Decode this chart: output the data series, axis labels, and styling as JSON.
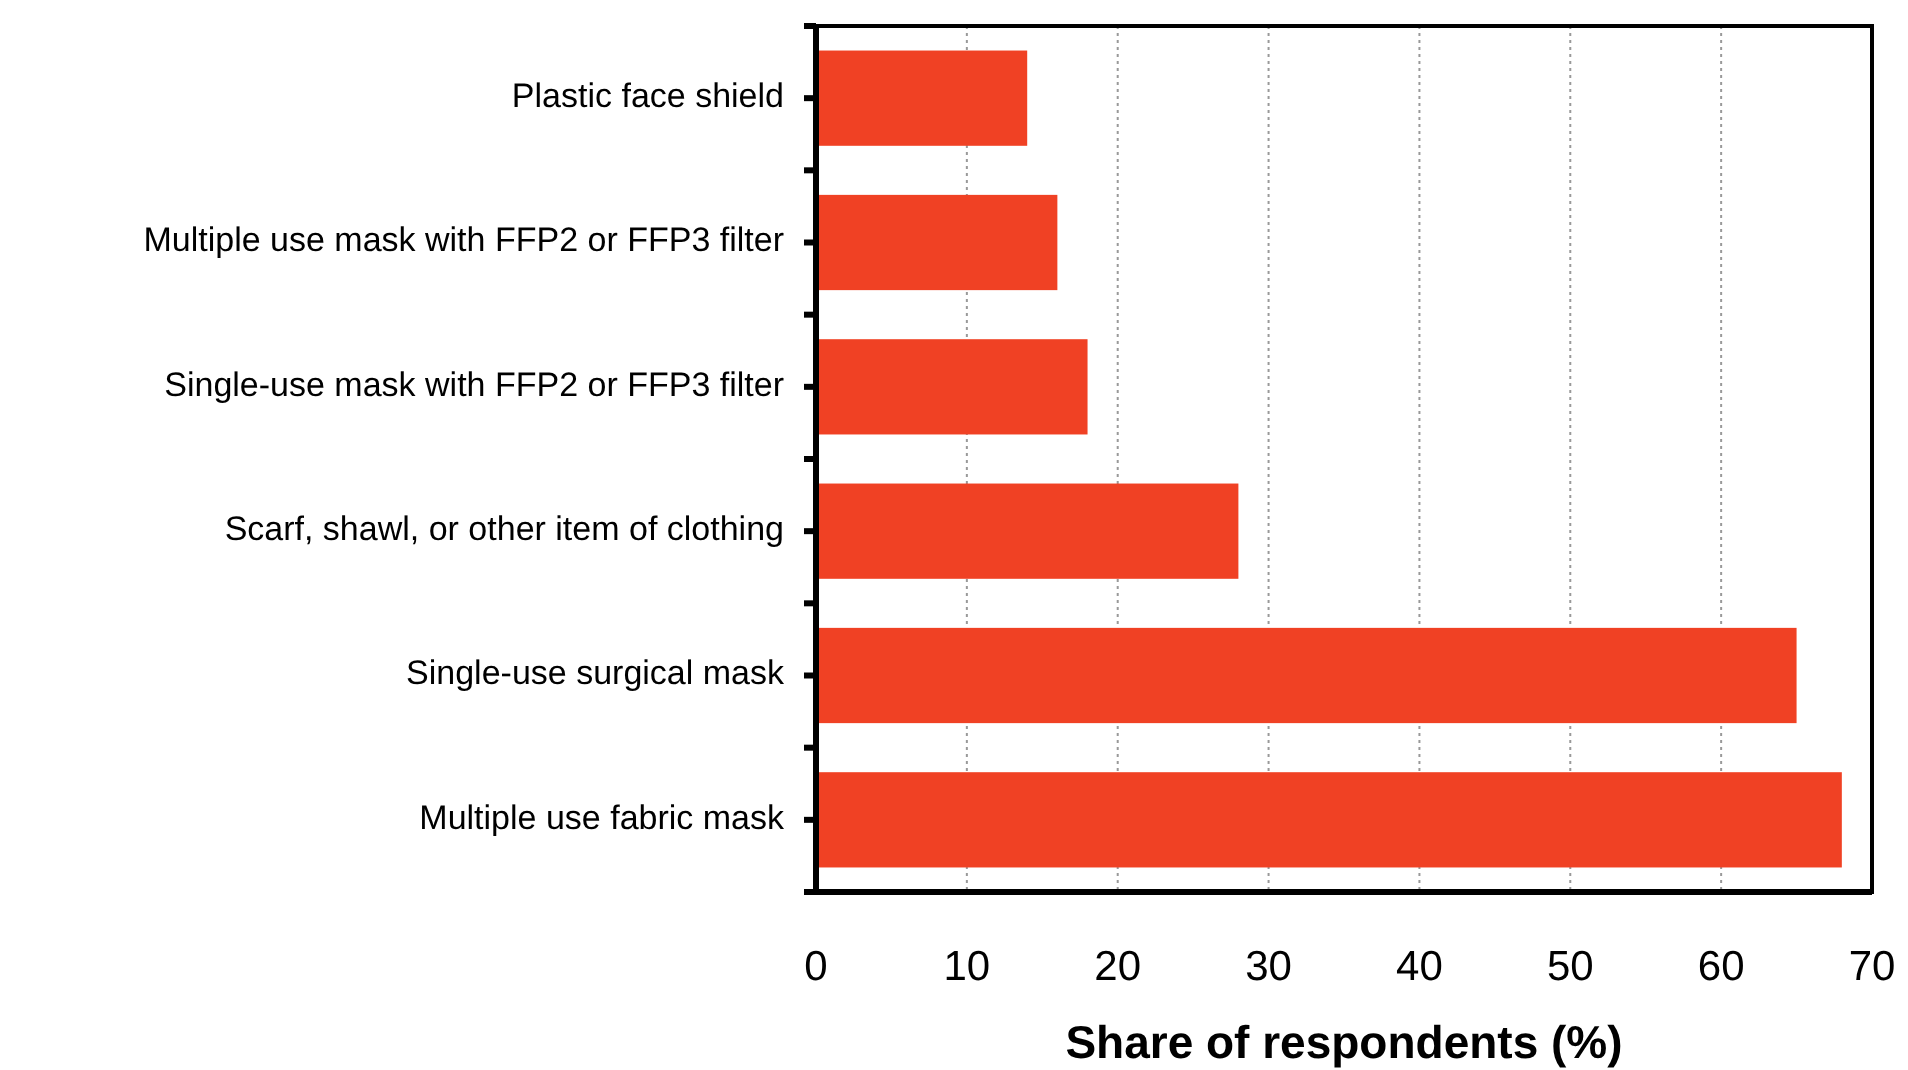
{
  "chart_data": {
    "type": "bar",
    "orientation": "horizontal",
    "xlabel": "Share of respondents (%)",
    "categories": [
      "Plastic face shield",
      "Multiple use mask with FFP2 or FFP3 filter",
      "Single-use mask with FFP2 or FFP3 filter",
      "Scarf, shawl, or other item of clothing",
      "Single-use surgical mask",
      "Multiple use fabric mask"
    ],
    "values": [
      14,
      16,
      18,
      28,
      65,
      68
    ],
    "color": "#f04124",
    "xlim": [
      0,
      70
    ],
    "xticks": [
      0,
      10,
      20,
      30,
      40,
      50,
      60,
      70
    ],
    "grid": "x"
  }
}
